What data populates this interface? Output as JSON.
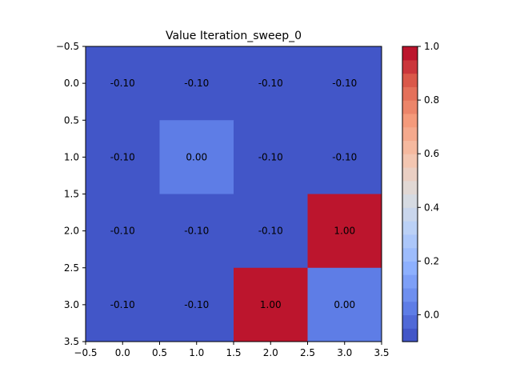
{
  "chart_data": {
    "type": "heatmap",
    "title": "Value Iteration_sweep_0",
    "x_ticks": [
      "−0.5",
      "0.0",
      "0.5",
      "1.0",
      "1.5",
      "2.0",
      "2.5",
      "3.0",
      "3.5"
    ],
    "y_ticks": [
      "−0.5",
      "0.0",
      "0.5",
      "1.0",
      "1.5",
      "2.0",
      "2.5",
      "3.0",
      "3.5"
    ],
    "xlim": [
      -0.5,
      3.5
    ],
    "ylim": [
      3.5,
      -0.5
    ],
    "values": [
      [
        -0.1,
        -0.1,
        -0.1,
        -0.1
      ],
      [
        -0.1,
        0.0,
        -0.1,
        -0.1
      ],
      [
        -0.1,
        -0.1,
        -0.1,
        1.0
      ],
      [
        -0.1,
        -0.1,
        1.0,
        0.0
      ]
    ],
    "cell_labels": [
      [
        "-0.10",
        "-0.10",
        "-0.10",
        "-0.10"
      ],
      [
        "-0.10",
        "0.00",
        "-0.10",
        "-0.10"
      ],
      [
        "-0.10",
        "-0.10",
        "-0.10",
        "1.00"
      ],
      [
        "-0.10",
        "-0.10",
        "1.00",
        "0.00"
      ]
    ],
    "colormap": "coolwarm",
    "vmin": -0.1,
    "vmax": 1.0,
    "colorbar_ticks": [
      "0.0",
      "0.2",
      "0.4",
      "0.6",
      "0.8",
      "1.0"
    ],
    "colorbar_tick_values": [
      0.0,
      0.2,
      0.4,
      0.6,
      0.8,
      1.0
    ],
    "colorbar_levels": 22,
    "grid": false
  }
}
